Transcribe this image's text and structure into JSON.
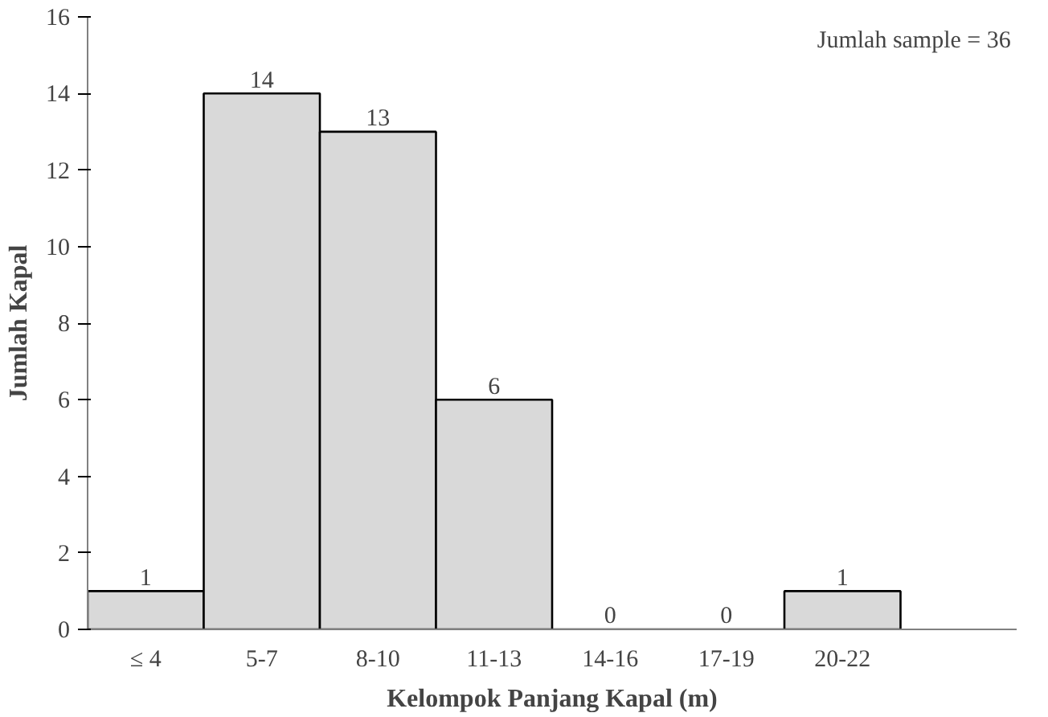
{
  "chart_data": {
    "type": "bar",
    "xlabel": "Kelompok Panjang Kapal (m)",
    "ylabel": "Jumlah Kapal",
    "categories": [
      "≤ 4",
      "5-7",
      "8-10",
      "11-13",
      "14-16",
      "17-19",
      "20-22",
      null
    ],
    "values": [
      1,
      14,
      13,
      6,
      0,
      0,
      1,
      null
    ],
    "color": "#d9d9d9",
    "ylim": [
      0,
      16
    ],
    "yticks": [
      0,
      2,
      4,
      6,
      8,
      10,
      12,
      14,
      16
    ],
    "grid": false,
    "data_labels": true,
    "annotations": [
      "Jumlah sample = 36"
    ]
  }
}
